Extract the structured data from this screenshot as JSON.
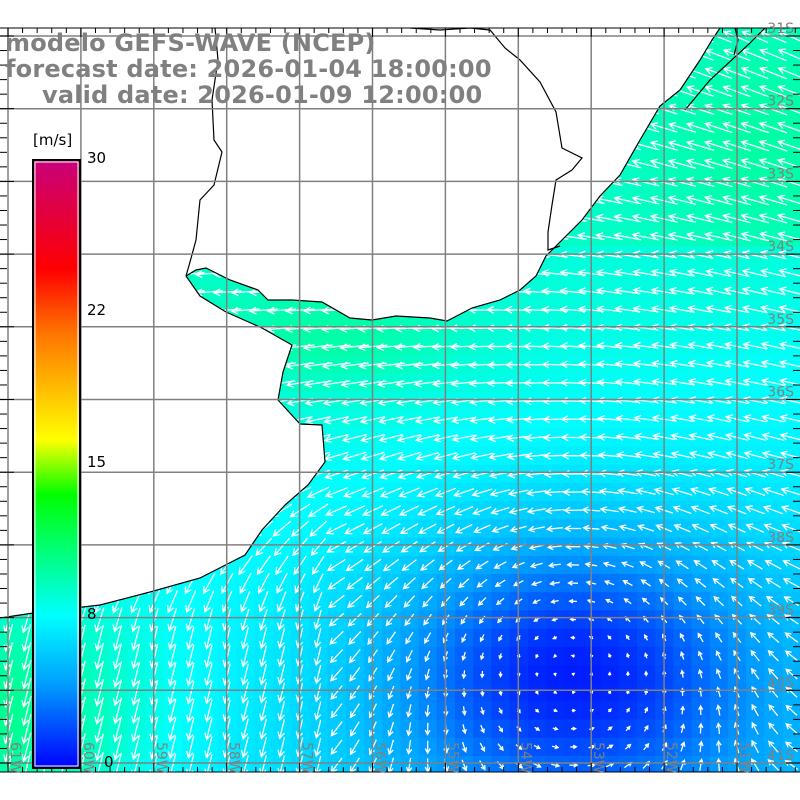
{
  "header": {
    "model_line": "modelo GEFS-WAVE (NCEP)",
    "forecast_line": "forecast date: 2026-01-04 18:00:00",
    "valid_line": "valid date: 2026-01-09 12:00:00"
  },
  "colorbar": {
    "unit": "[m/s]",
    "labels": [
      "30",
      "22",
      "15",
      "8",
      "0"
    ],
    "values": [
      30,
      22,
      15,
      8,
      0
    ]
  },
  "map": {
    "lat_labels": [
      "31S",
      "32S",
      "33S",
      "34S",
      "35S",
      "36S",
      "37S",
      "38S",
      "39S",
      "40S",
      "41S"
    ],
    "lon_labels": [
      "61W",
      "60W",
      "59W",
      "58W",
      "57W",
      "56W",
      "55W",
      "54W",
      "53W",
      "52W",
      "51W"
    ],
    "variable": "wind speed and direction"
  },
  "colors": {
    "land": "#ffffff",
    "coastline": "#000000",
    "grid": "#808080",
    "arrows": "#ffffff",
    "title_text": "#808080"
  }
}
